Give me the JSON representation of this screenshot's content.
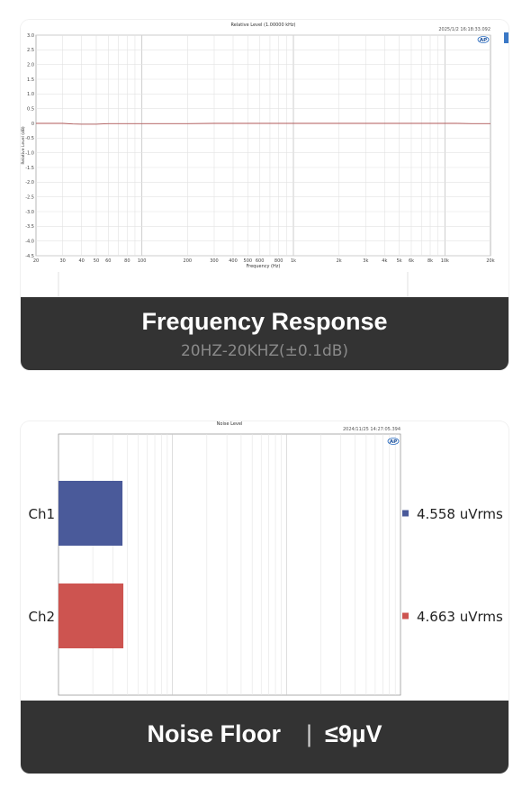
{
  "chart_data": [
    {
      "type": "line",
      "title": "Relative Level (1.00000 kHz)",
      "timestamp": "2025/1/2 16:18:33.092",
      "xlabel": "Frequency (Hz)",
      "ylabel": "Relative Level (dB)",
      "x_scale": "log",
      "xlim": [
        20,
        20000
      ],
      "ylim": [
        -4.5,
        3.0
      ],
      "x_ticks": [
        20,
        30,
        40,
        50,
        60,
        80,
        100,
        200,
        300,
        400,
        500,
        600,
        800,
        1000,
        2000,
        3000,
        4000,
        5000,
        6000,
        8000,
        10000,
        20000
      ],
      "x_tick_labels": [
        "20",
        "30",
        "40",
        "50",
        "60",
        "80",
        "100",
        "200",
        "300",
        "400",
        "500",
        "600",
        "800",
        "1k",
        "2k",
        "3k",
        "4k",
        "5k",
        "6k",
        "8k",
        "10k",
        "20k"
      ],
      "y_ticks": [
        3.0,
        2.5,
        2.0,
        1.5,
        1.0,
        0.5,
        0,
        -0.5,
        -1.0,
        -1.5,
        -2.0,
        -2.5,
        -3.0,
        -3.5,
        -4.0,
        -4.5
      ],
      "y_tick_labels": [
        "3.0",
        "2.5",
        "2.0",
        "1.5",
        "1.0",
        "0.5",
        "0",
        "-0.5",
        "-1.0",
        "-1.5",
        "-2.0",
        "-2.5",
        "-3.0",
        "-3.5",
        "-4.0",
        "-4.5"
      ],
      "grid": true,
      "series": [
        {
          "color": "#b05a5a",
          "x": [
            20,
            30,
            35,
            40,
            50,
            60,
            100,
            200,
            300,
            400,
            1000,
            2000,
            5000,
            10000,
            12000,
            15000,
            20000
          ],
          "y": [
            0.0,
            0.0,
            -0.02,
            -0.03,
            -0.03,
            -0.01,
            -0.01,
            -0.01,
            0.0,
            0.0,
            0.0,
            0.0,
            0.0,
            0.0,
            0.0,
            -0.01,
            -0.01
          ]
        }
      ]
    },
    {
      "type": "bar",
      "orientation": "horizontal",
      "title": "Noise Level",
      "timestamp": "2024/11/25 14:27:05.394",
      "x_scale": "log",
      "categories": [
        "Ch1",
        "Ch2"
      ],
      "series": [
        {
          "values": [
            4.558,
            4.663
          ],
          "colors": [
            "#4a5a9a",
            "#cd5450"
          ]
        }
      ],
      "value_labels": [
        "4.558  uVrms",
        "4.663  uVrms"
      ],
      "grid": true
    }
  ],
  "captions": {
    "frequency_title": "Frequency Response",
    "frequency_sub": "20HZ-20KHZ(±0.1dB)",
    "noise_title": "Noise Floor",
    "noise_sep": "|",
    "noise_value": "≤9µV"
  },
  "logo_text": "AP",
  "colors": {
    "caption_bg": "#333333",
    "grid": "#dcdcdc",
    "ch1": "#4a5a9a",
    "ch2": "#cd5450"
  }
}
